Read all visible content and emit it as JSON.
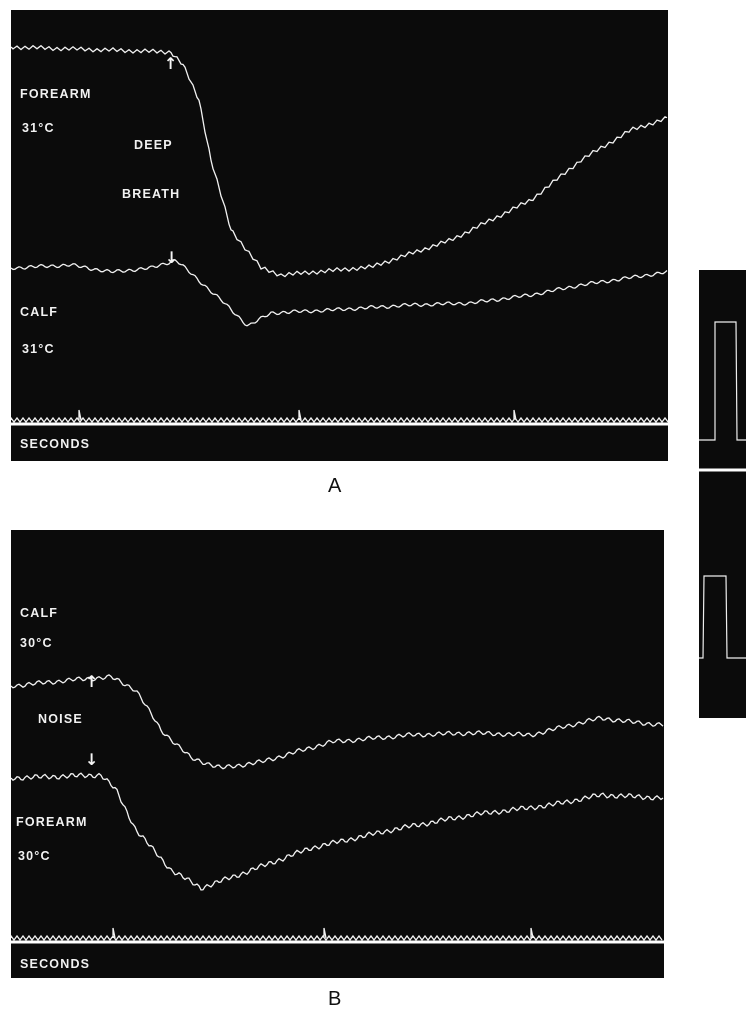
{
  "panel_a": {
    "trace1_label": "FOREARM",
    "trace1_temp": "31°C",
    "event_label_line1": "DEEP",
    "event_label_line2": "BREATH",
    "trace2_label": "CALF",
    "trace2_temp": "31°C",
    "timebase_label": "SECONDS",
    "caption": "A"
  },
  "panel_b": {
    "trace1_label": "CALF",
    "trace1_temp": "30°C",
    "event_label": "NOISE",
    "trace2_label": "FOREARM",
    "trace2_temp": "30°C",
    "timebase_label": "SECONDS",
    "caption": "B"
  },
  "icons": {
    "up_arrow": "↑",
    "down_arrow": "↓"
  }
}
